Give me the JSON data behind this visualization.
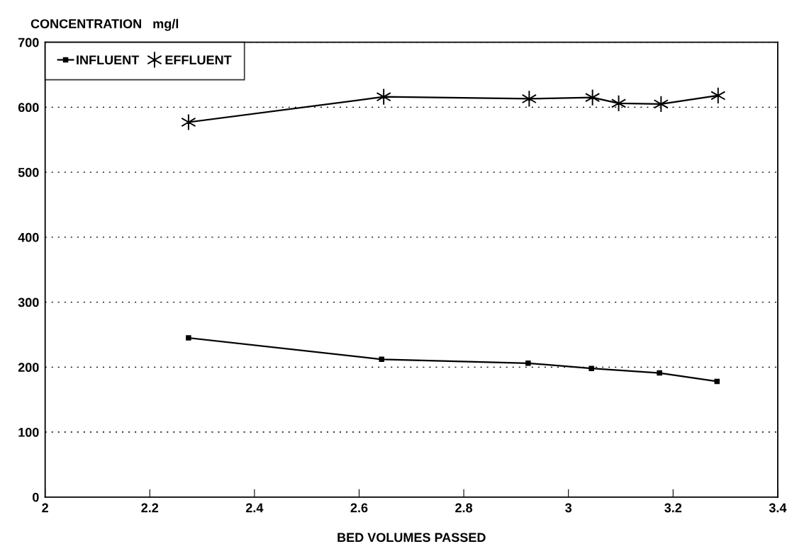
{
  "chart_data": {
    "type": "line",
    "ylabel": "CONCENTRATION   mg/l",
    "xlabel": "BED VOLUMES PASSED",
    "xlim": [
      2,
      3.4
    ],
    "xticks": [
      2,
      2.2,
      2.4,
      2.6,
      2.8,
      3,
      3.2,
      3.4
    ],
    "ylim": [
      0,
      700
    ],
    "yticks": [
      0,
      100,
      200,
      300,
      400,
      500,
      600,
      700
    ],
    "grid": "y",
    "legend": "top left",
    "line_style": "solid",
    "series": [
      {
        "name": "INFLUENT",
        "color": "#000000",
        "marker": "square",
        "x": [
          2.274,
          2.643,
          2.923,
          3.044,
          3.174,
          3.284
        ],
        "values": [
          245,
          212,
          206,
          198,
          191,
          178
        ]
      },
      {
        "name": "EFFLUENT",
        "color": "#000000",
        "marker": "cross",
        "x": [
          2.274,
          2.647,
          2.925,
          3.046,
          3.096,
          3.177,
          3.286
        ],
        "values": [
          577,
          616,
          613,
          615,
          606,
          605,
          618
        ]
      }
    ]
  }
}
